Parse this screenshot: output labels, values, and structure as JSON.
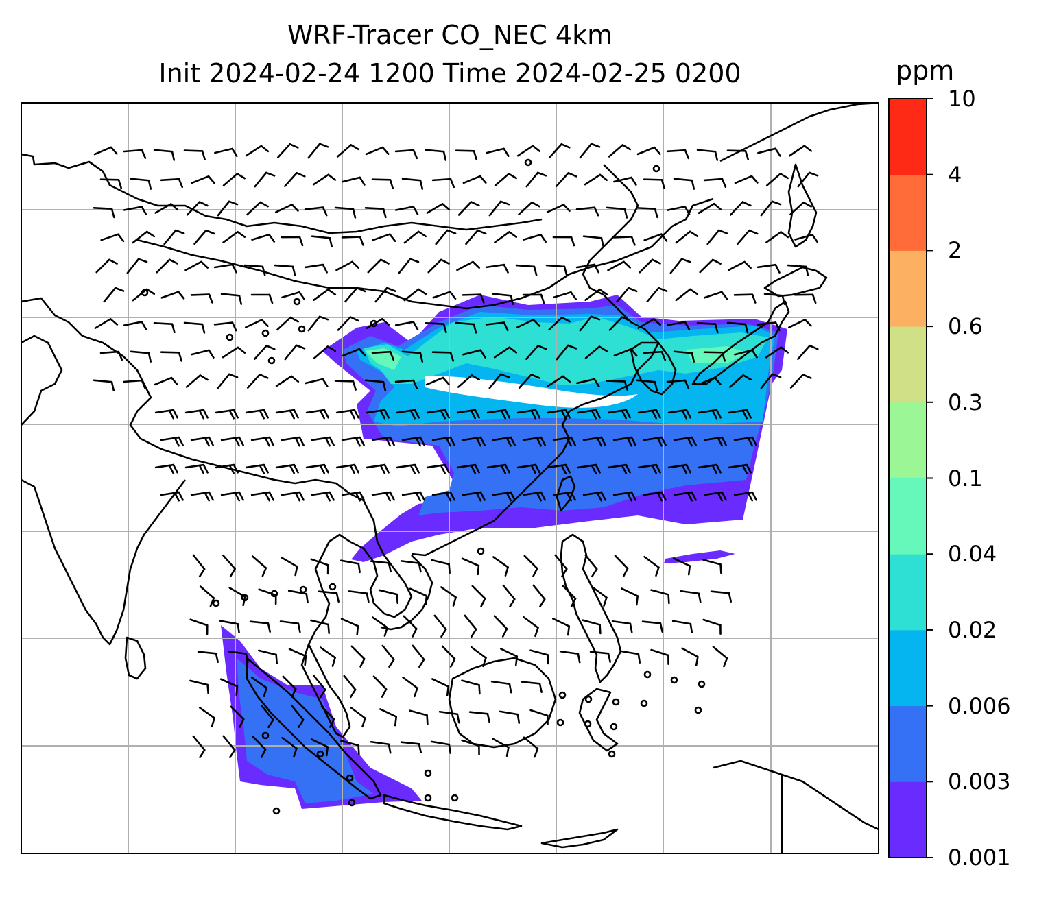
{
  "title": {
    "line1": "WRF-Tracer CO_NEC 4km",
    "line2": "Init 2024-02-24 1200 Time 2024-02-25 0200"
  },
  "colorbar": {
    "unit": "ppm",
    "tick_labels": [
      "0.001",
      "0.003",
      "0.006",
      "0.02",
      "0.04",
      "0.1",
      "0.3",
      "0.6",
      "2",
      "4",
      "10"
    ],
    "colors": [
      "#6a2bff",
      "#3471f5",
      "#05b5ef",
      "#2edfd4",
      "#66f7bb",
      "#9bf795",
      "#cfe086",
      "#fcb062",
      "#ff6c39",
      "#ff2a16"
    ]
  },
  "map": {
    "tracer_plume_colors": {
      "lowest": "#6a2bff",
      "low": "#3471f5",
      "mid": "#05b5ef",
      "higher": "#2edfd4",
      "high": "#66f7bb"
    },
    "gridline_color": "#b0b0b0",
    "coastline_color": "#000000",
    "barb_color": "#000000"
  }
}
